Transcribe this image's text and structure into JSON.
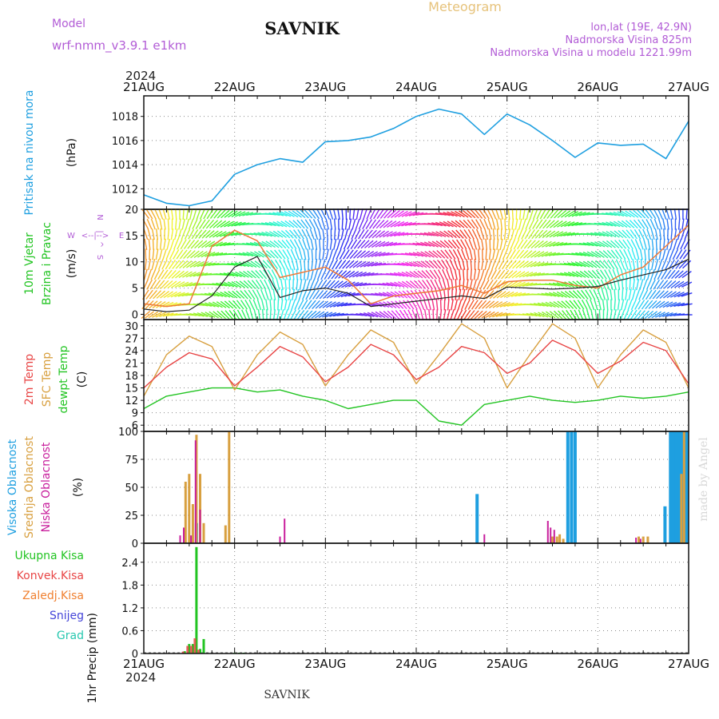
{
  "header": {
    "model_label": "Model",
    "model_name": "wrf-nmm_v3.9.1  e1km",
    "title": "SAVNIK",
    "product": "Meteogram",
    "lonlat": "lon,lat (19E, 42.9N)",
    "elevation": "Nadmorska Visina 825m",
    "model_elevation": "Nadmorska Visina u modelu 1221.99m",
    "year": "2024",
    "footer": "SAVNIK",
    "credit": "made by Angel"
  },
  "colors": {
    "pressure": "#1e9fe0",
    "temp2m": "#e84545",
    "sfc_temp": "#d8a040",
    "dewpoint": "#22c422",
    "cloud_high": "#1e9fe0",
    "cloud_mid": "#d8a040",
    "cloud_low": "#c81e9c",
    "precip_total": "#22c422",
    "precip_conv": "#e84545",
    "precip_frz": "#f08030",
    "precip_snow": "#4545d8",
    "precip_graupel": "#28c8b0",
    "wind_speed": "#222222",
    "gust": "#ee7a3a",
    "grid": "#888888",
    "title_purple": "#b25cd6",
    "title_tan": "#e6c27a"
  },
  "chart_data": [
    {
      "type": "line",
      "panel": "pressure",
      "ylabel": "Pritisak na nivou mora",
      "units": "(hPa)",
      "x_ticks": [
        "21AUG",
        "22AUG",
        "23AUG",
        "24AUG",
        "25AUG",
        "26AUG",
        "27AUG"
      ],
      "yticks": [
        1012,
        1014,
        1016,
        1018
      ],
      "ylim": [
        1010.3,
        1019.7
      ],
      "x": [
        0,
        0.25,
        0.5,
        0.75,
        1,
        1.25,
        1.5,
        1.75,
        2,
        2.25,
        2.5,
        2.75,
        3,
        3.25,
        3.5,
        3.75,
        4,
        4.25,
        4.5,
        4.75,
        5,
        5.25,
        5.5,
        5.75,
        6
      ],
      "series": [
        {
          "values": [
            1011.5,
            1010.8,
            1010.6,
            1011.0,
            1013.2,
            1014.0,
            1014.5,
            1014.2,
            1015.9,
            1016.0,
            1016.3,
            1017.0,
            1018.0,
            1018.6,
            1018.2,
            1016.5,
            1018.2,
            1017.3,
            1016.0,
            1014.6,
            1015.8,
            1015.6,
            1015.7,
            1014.5,
            1017.6
          ]
        }
      ]
    },
    {
      "type": "line",
      "panel": "wind",
      "ylabel": [
        "10m Vjetar",
        "Brzina i Pravac"
      ],
      "units": "(m/s)",
      "compass": [
        "W",
        "<--|-->",
        "E",
        "S",
        "^",
        "|",
        "N"
      ],
      "yticks": [
        0,
        5,
        10,
        15,
        20
      ],
      "ylim": [
        -1,
        20
      ],
      "x": [
        0,
        0.25,
        0.5,
        0.75,
        1,
        1.25,
        1.5,
        1.75,
        2,
        2.25,
        2.5,
        2.75,
        3,
        3.25,
        3.5,
        3.75,
        4,
        4.25,
        4.5,
        4.75,
        5,
        5.25,
        5.5,
        5.75,
        6
      ],
      "series": [
        {
          "name": "speed",
          "values": [
            1.0,
            0.5,
            0.8,
            3.5,
            9.0,
            11.0,
            3.2,
            4.5,
            5.0,
            4.0,
            1.5,
            2.0,
            2.5,
            3.0,
            3.5,
            3.0,
            5.2,
            5.0,
            4.8,
            5.0,
            5.3,
            6.5,
            7.5,
            8.5,
            10.5
          ]
        },
        {
          "name": "gust",
          "values": [
            2.0,
            1.5,
            2.0,
            13.0,
            16.0,
            14.0,
            7.0,
            8.0,
            9.0,
            6.5,
            2.0,
            3.5,
            4.0,
            4.5,
            5.5,
            4.0,
            6.2,
            6.5,
            6.5,
            5.5,
            5.0,
            7.5,
            9.0,
            13.0,
            17.0
          ]
        }
      ]
    },
    {
      "type": "line",
      "panel": "temperature",
      "ylabel": [
        "2m Temp",
        "SFC Temp",
        "dewpt Temp"
      ],
      "units": "(C)",
      "yticks": [
        6,
        9,
        12,
        15,
        18,
        21,
        24,
        27,
        30
      ],
      "ylim": [
        4.5,
        31.5
      ],
      "x": [
        0,
        0.25,
        0.5,
        0.75,
        1,
        1.25,
        1.5,
        1.75,
        2,
        2.25,
        2.5,
        2.75,
        3,
        3.25,
        3.5,
        3.75,
        4,
        4.25,
        4.5,
        4.75,
        5,
        5.25,
        5.5,
        5.75,
        6
      ],
      "series": [
        {
          "name": "2m Temp",
          "values": [
            15.0,
            20.0,
            23.5,
            22.0,
            15.5,
            20.0,
            25.0,
            22.5,
            16.5,
            20.0,
            25.5,
            23.0,
            17.0,
            20.0,
            25.0,
            23.5,
            18.5,
            21.0,
            26.5,
            24.0,
            18.5,
            21.5,
            26.0,
            24.0,
            16.0
          ]
        },
        {
          "name": "SFC Temp",
          "values": [
            13.0,
            23.0,
            27.5,
            25.0,
            14.5,
            23.0,
            28.5,
            25.5,
            15.5,
            23.0,
            29.0,
            26.0,
            16.0,
            23.0,
            30.5,
            27.0,
            15.0,
            23.0,
            30.5,
            27.0,
            15.0,
            23.0,
            29.0,
            26.0,
            15.0
          ]
        },
        {
          "name": "dewpt Temp",
          "values": [
            10.0,
            13.0,
            14.0,
            15.0,
            15.0,
            14.0,
            14.5,
            13.0,
            12.0,
            10.0,
            11.0,
            12.0,
            12.0,
            7.0,
            6.0,
            11.0,
            12.0,
            13.0,
            12.0,
            11.5,
            12.0,
            13.0,
            12.5,
            13.0,
            14.0
          ]
        }
      ]
    },
    {
      "type": "bar",
      "panel": "clouds",
      "ylabel": [
        "Visoka Oblacnost",
        "Srednja Oblacnost",
        "Niska Oblacnost"
      ],
      "units": "(%)",
      "yticks": [
        0,
        25,
        50,
        75,
        100
      ],
      "ylim": [
        0,
        100
      ],
      "series": [
        {
          "name": "Visoka Oblacnost",
          "x": [
            0.58,
            2.48,
            3.67,
            3.71,
            4.67,
            4.71,
            4.75,
            5.7,
            5.74,
            5.8,
            5.83,
            5.86,
            5.89,
            5.92,
            5.95,
            5.98
          ],
          "values": [
            18,
            0,
            44,
            0,
            100,
            100,
            100,
            0,
            33,
            100,
            100,
            100,
            100,
            100,
            100,
            100
          ]
        },
        {
          "name": "Srednja Oblacnost",
          "x": [
            0.46,
            0.5,
            0.54,
            0.58,
            0.62,
            0.66,
            0.9,
            0.94,
            4.5,
            4.55,
            4.58,
            4.62,
            5.45,
            5.5,
            5.55,
            5.92,
            5.95
          ],
          "values": [
            55,
            62,
            35,
            97,
            62,
            18,
            16,
            100,
            6,
            6,
            8,
            4,
            6,
            6,
            6,
            62,
            100
          ]
        },
        {
          "name": "Niska Oblacnost",
          "x": [
            0.4,
            0.44,
            0.52,
            0.57,
            0.62,
            1.5,
            1.55,
            3.75,
            4.45,
            4.48,
            4.52,
            5.42,
            5.47
          ],
          "values": [
            7,
            14,
            7,
            92,
            30,
            6,
            22,
            8,
            20,
            14,
            12,
            5,
            4
          ]
        }
      ]
    },
    {
      "type": "bar",
      "panel": "precipitation",
      "legend": [
        "Ukupna Kisa",
        "Konvek.Kisa",
        "Zaledj.Kisa",
        "Snijeg",
        "Grad"
      ],
      "ylabel": "1hr Precip",
      "units": "(mm)",
      "yticks": [
        0,
        0.6,
        1.2,
        1.8,
        2.4
      ],
      "ylim": [
        0,
        2.9
      ],
      "series": [
        {
          "name": "Ukupna Kisa",
          "x": [
            0.45,
            0.5,
            0.54,
            0.58,
            0.62,
            0.66,
            1.0,
            1.05,
            1.1
          ],
          "values": [
            0.06,
            0.25,
            0.25,
            2.8,
            0.12,
            0.38,
            0.02,
            0.02,
            0.02
          ]
        },
        {
          "name": "Konvek.Kisa",
          "x": [
            0.45,
            0.5,
            0.54,
            0.58,
            0.62
          ],
          "values": [
            0.05,
            0.2,
            0.2,
            0.4,
            0.1
          ]
        }
      ]
    }
  ]
}
